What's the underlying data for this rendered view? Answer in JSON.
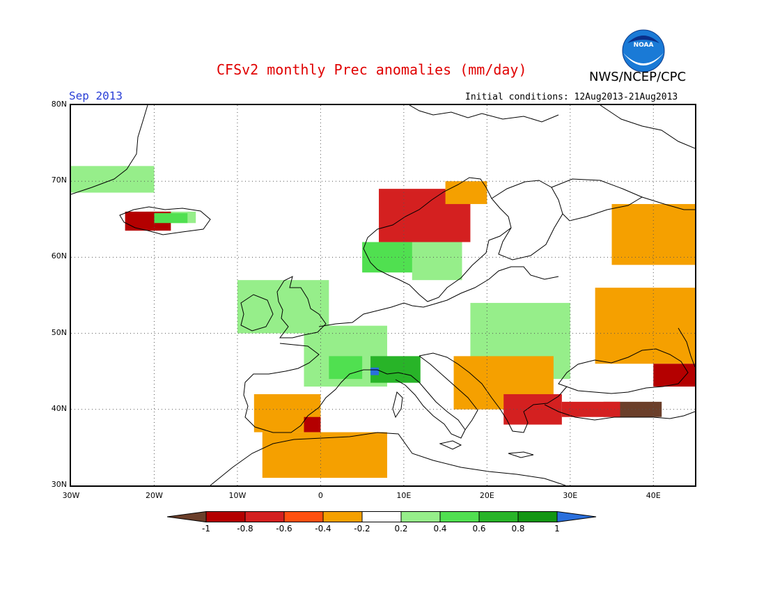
{
  "header": {
    "title": "CFSv2 monthly Prec anomalies (mm/day)",
    "agency": "NWS/NCEP/CPC",
    "month": "Sep 2013",
    "initial_conditions": "Initial conditions: 12Aug2013-21Aug2013",
    "logo_text": "NOAA"
  },
  "map": {
    "lon_range": [
      -30,
      45
    ],
    "lat_range": [
      30,
      80
    ],
    "y_ticks": [
      {
        "lat": 80,
        "label": "80N"
      },
      {
        "lat": 70,
        "label": "70N"
      },
      {
        "lat": 60,
        "label": "60N"
      },
      {
        "lat": 50,
        "label": "50N"
      },
      {
        "lat": 40,
        "label": "40N"
      },
      {
        "lat": 30,
        "label": "30N"
      }
    ],
    "x_ticks": [
      {
        "lon": -30,
        "label": "30W"
      },
      {
        "lon": -20,
        "label": "20W"
      },
      {
        "lon": -10,
        "label": "10W"
      },
      {
        "lon": 0,
        "label": "0"
      },
      {
        "lon": 10,
        "label": "10E"
      },
      {
        "lon": 20,
        "label": "20E"
      },
      {
        "lon": 30,
        "label": "30E"
      },
      {
        "lon": 40,
        "label": "40E"
      }
    ],
    "grid": "dotted"
  },
  "colorbar": {
    "labels": [
      "-1",
      "-0.8",
      "-0.6",
      "-0.4",
      "-0.2",
      "0.2",
      "0.4",
      "0.6",
      "0.8",
      "1"
    ],
    "colors": [
      "#6b3f2a",
      "#b40000",
      "#d42020",
      "#ff5010",
      "#f5a000",
      "#ffffff",
      "#96ee8a",
      "#50e050",
      "#28b428",
      "#129612",
      "#2a6fdc"
    ]
  },
  "anomaly_regions": [
    {
      "level": "0.2",
      "color": "#96ee8a",
      "area": "Greenland east coast",
      "lon": [
        -30,
        -20
      ],
      "lat": [
        68.5,
        72
      ]
    },
    {
      "level": "0.2",
      "color": "#96ee8a",
      "area": "Iceland north",
      "lon": [
        -21,
        -15
      ],
      "lat": [
        64.5,
        66
      ]
    },
    {
      "level": "-0.8",
      "color": "#b40000",
      "area": "Iceland west",
      "lon": [
        -23.5,
        -18
      ],
      "lat": [
        63.5,
        66
      ]
    },
    {
      "level": "0.4",
      "color": "#50e050",
      "area": "Iceland",
      "lon": [
        -20,
        -16
      ],
      "lat": [
        64.5,
        65.8
      ]
    },
    {
      "level": "0.2",
      "color": "#96ee8a",
      "area": "British Isles",
      "lon": [
        -10,
        1
      ],
      "lat": [
        50,
        57
      ]
    },
    {
      "level": "0.2",
      "color": "#96ee8a",
      "area": "France and Benelux",
      "lon": [
        -2,
        8
      ],
      "lat": [
        43,
        51
      ]
    },
    {
      "level": "0.4",
      "color": "#50e050",
      "area": "Southern France",
      "lon": [
        1,
        5
      ],
      "lat": [
        44,
        47
      ]
    },
    {
      "level": "0.6",
      "color": "#28b428",
      "area": "Alps",
      "lon": [
        6,
        12
      ],
      "lat": [
        43.5,
        47
      ]
    },
    {
      "level": "1",
      "color": "#2a6fdc",
      "area": "Western Alps point",
      "lon": [
        6,
        7
      ],
      "lat": [
        44.5,
        45.5
      ]
    },
    {
      "level": "0.4",
      "color": "#50e050",
      "area": "Southern Norway",
      "lon": [
        5,
        12
      ],
      "lat": [
        58,
        62
      ]
    },
    {
      "level": "0.2",
      "color": "#96ee8a",
      "area": "Sweden",
      "lon": [
        11,
        17
      ],
      "lat": [
        57,
        63
      ]
    },
    {
      "level": "-0.6",
      "color": "#d42020",
      "area": "Norway coast",
      "lon": [
        7,
        18
      ],
      "lat": [
        62,
        69
      ]
    },
    {
      "level": "-0.4",
      "color": "#f5a000",
      "area": "Northern Norway",
      "lon": [
        15,
        20
      ],
      "lat": [
        67,
        70
      ]
    },
    {
      "level": "0.2",
      "color": "#96ee8a",
      "area": "Central Europe",
      "lon": [
        18,
        30
      ],
      "lat": [
        44,
        54
      ]
    },
    {
      "level": "-0.4",
      "color": "#f5a000",
      "area": "Balkans",
      "lon": [
        16,
        28
      ],
      "lat": [
        40,
        47
      ]
    },
    {
      "level": "-0.6",
      "color": "#d42020",
      "area": "Greece and Aegean",
      "lon": [
        22,
        29
      ],
      "lat": [
        38,
        42
      ]
    },
    {
      "level": "-0.4",
      "color": "#f5a000",
      "area": "Russia east",
      "lon": [
        35,
        45
      ],
      "lat": [
        59,
        67
      ]
    },
    {
      "level": "-0.4",
      "color": "#f5a000",
      "area": "Caspian region",
      "lon": [
        33,
        45
      ],
      "lat": [
        46,
        56
      ]
    },
    {
      "level": "-0.8",
      "color": "#b40000",
      "area": "Caucasus",
      "lon": [
        40,
        45
      ],
      "lat": [
        43,
        46
      ]
    },
    {
      "level": "-1",
      "color": "#6b3f2a",
      "area": "Turkey",
      "lon": [
        34,
        41
      ],
      "lat": [
        39,
        41
      ]
    },
    {
      "level": "-0.6",
      "color": "#d42020",
      "area": "Turkey coast",
      "lon": [
        29,
        36
      ],
      "lat": [
        39,
        41
      ]
    },
    {
      "level": "-0.4",
      "color": "#f5a000",
      "area": "Iberia",
      "lon": [
        -8,
        0
      ],
      "lat": [
        37,
        42
      ]
    },
    {
      "level": "-0.8",
      "color": "#b40000",
      "area": "Eastern Spain",
      "lon": [
        -2,
        0
      ],
      "lat": [
        37,
        39
      ]
    },
    {
      "level": "-0.4",
      "color": "#f5a000",
      "area": "North Africa",
      "lon": [
        -7,
        8
      ],
      "lat": [
        31,
        37
      ]
    }
  ]
}
